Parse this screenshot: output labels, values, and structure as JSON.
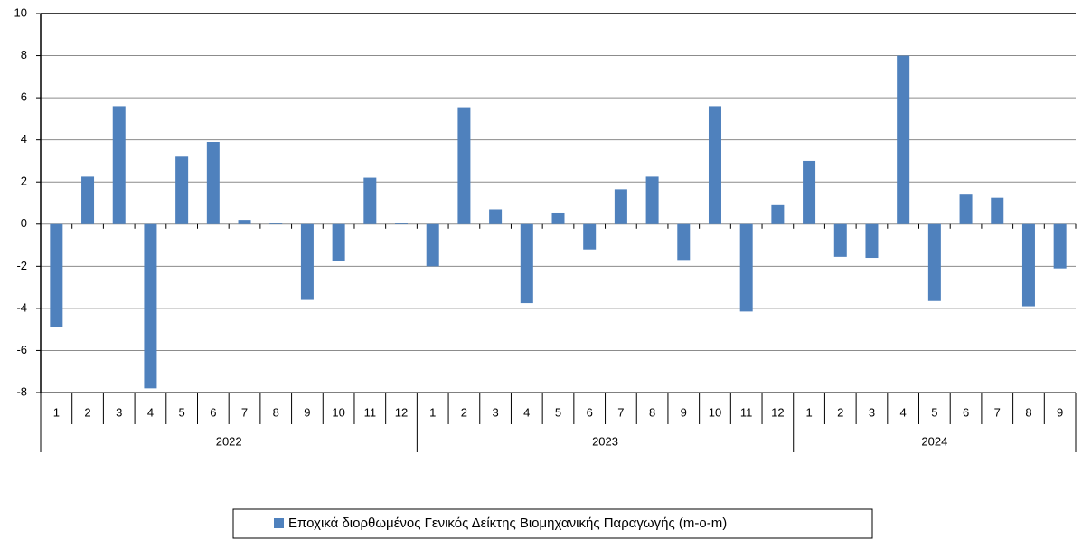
{
  "chart_data": {
    "type": "bar",
    "groups": [
      {
        "label": "2022",
        "categories": [
          "1",
          "2",
          "3",
          "4",
          "5",
          "6",
          "7",
          "8",
          "9",
          "10",
          "11",
          "12"
        ]
      },
      {
        "label": "2023",
        "categories": [
          "1",
          "2",
          "3",
          "4",
          "5",
          "6",
          "7",
          "8",
          "9",
          "10",
          "11",
          "12"
        ]
      },
      {
        "label": "2024",
        "categories": [
          "1",
          "2",
          "3",
          "4",
          "5",
          "6",
          "7",
          "8",
          "9"
        ]
      }
    ],
    "series": [
      {
        "name": "Εποχικά διορθωμένος Γενικός Δείκτης Βιομηχανικής Παραγωγής (m-o-m)",
        "color": "#4f81bd",
        "values": [
          -4.9,
          2.25,
          5.6,
          -7.8,
          3.2,
          3.9,
          0.2,
          0.05,
          -3.6,
          -1.75,
          2.2,
          0.05,
          -2.0,
          5.55,
          0.7,
          -3.75,
          0.55,
          -1.2,
          1.65,
          2.25,
          -1.7,
          5.6,
          -4.15,
          0.9,
          3.0,
          -1.55,
          -1.6,
          8.0,
          -3.65,
          1.4,
          1.25,
          -3.9,
          -2.1
        ]
      }
    ],
    "ylim": [
      -8,
      10
    ],
    "yticks": [
      -8,
      -6,
      -4,
      -2,
      0,
      2,
      4,
      6,
      8,
      10
    ],
    "grid": true,
    "legend": "bottom"
  }
}
